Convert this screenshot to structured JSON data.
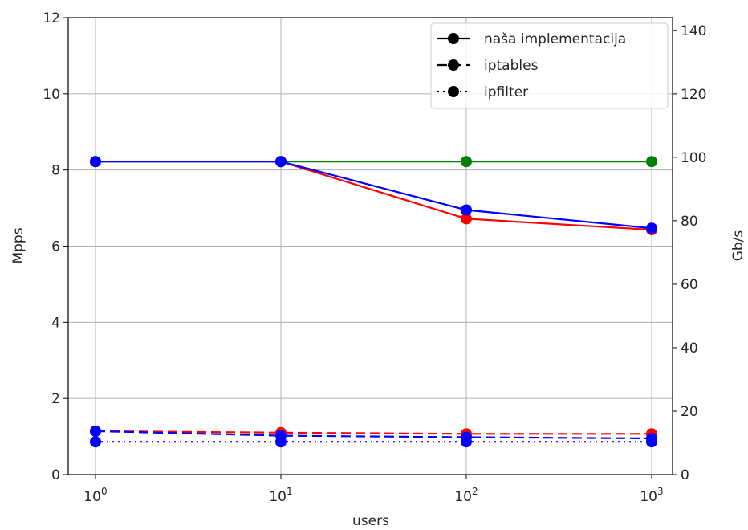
{
  "chart_data": {
    "type": "line",
    "title": "",
    "xlabel": "users",
    "ylabel": "Mpps",
    "y2label": "Gb/s",
    "xscale": "log",
    "x": [
      1,
      10,
      100,
      1000
    ],
    "xticks": [
      {
        "base": "10",
        "exp": "0"
      },
      {
        "base": "10",
        "exp": "1"
      },
      {
        "base": "10",
        "exp": "2"
      },
      {
        "base": "10",
        "exp": "3"
      }
    ],
    "ylim": [
      0,
      12
    ],
    "yticks": [
      "0",
      "2",
      "4",
      "6",
      "8",
      "10",
      "12"
    ],
    "y2lim": [
      0,
      144
    ],
    "y2ticks": [
      "0",
      "20",
      "40",
      "60",
      "80",
      "100",
      "120",
      "140"
    ],
    "grid": true,
    "legend_position": "top-right",
    "legend": [
      {
        "label": "naša implementacija",
        "style": "solid"
      },
      {
        "label": "iptables",
        "style": "dashed"
      },
      {
        "label": "ipfilter",
        "style": "dotted"
      }
    ],
    "series": [
      {
        "color": "#008000",
        "style": "solid",
        "values": [
          8.22,
          8.22,
          8.22,
          8.22
        ]
      },
      {
        "color": "#ff0000",
        "style": "solid",
        "values": [
          8.22,
          8.22,
          6.72,
          6.43
        ]
      },
      {
        "color": "#0000ff",
        "style": "solid",
        "values": [
          8.22,
          8.22,
          6.95,
          6.47
        ]
      },
      {
        "color": "#ff0000",
        "style": "dashed",
        "values": [
          1.14,
          1.1,
          1.07,
          1.07
        ]
      },
      {
        "color": "#0000ff",
        "style": "dashed",
        "values": [
          1.14,
          1.02,
          0.98,
          0.95
        ]
      },
      {
        "color": "#0000ff",
        "style": "dotted",
        "values": [
          0.86,
          0.86,
          0.86,
          0.86
        ]
      }
    ]
  }
}
